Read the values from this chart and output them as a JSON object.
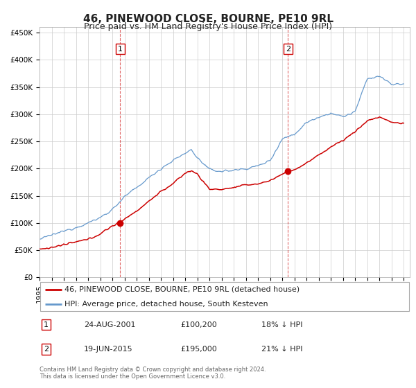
{
  "title": "46, PINEWOOD CLOSE, BOURNE, PE10 9RL",
  "subtitle": "Price paid vs. HM Land Registry's House Price Index (HPI)",
  "background_color": "#ffffff",
  "plot_bg_color": "#ffffff",
  "grid_color": "#cccccc",
  "red_line_color": "#cc0000",
  "blue_line_color": "#6699cc",
  "marker1_date": 2001.648,
  "marker1_value": 100200,
  "marker1_x_line": 2001.648,
  "marker2_date": 2015.464,
  "marker2_value": 195000,
  "marker2_x_line": 2015.464,
  "ylim_min": 0,
  "ylim_max": 460000,
  "xlim_min": 1995.0,
  "xlim_max": 2025.5,
  "legend_label_red": "46, PINEWOOD CLOSE, BOURNE, PE10 9RL (detached house)",
  "legend_label_blue": "HPI: Average price, detached house, South Kesteven",
  "table_row1": [
    "1",
    "24-AUG-2001",
    "£100,200",
    "18% ↓ HPI"
  ],
  "table_row2": [
    "2",
    "19-JUN-2015",
    "£195,000",
    "21% ↓ HPI"
  ],
  "footnote1": "Contains HM Land Registry data © Crown copyright and database right 2024.",
  "footnote2": "This data is licensed under the Open Government Licence v3.0.",
  "title_fontsize": 11,
  "subtitle_fontsize": 9,
  "tick_fontsize": 7.5,
  "ytick_labels": [
    "£0",
    "£50K",
    "£100K",
    "£150K",
    "£200K",
    "£250K",
    "£300K",
    "£350K",
    "£400K",
    "£450K"
  ],
  "ytick_values": [
    0,
    50000,
    100000,
    150000,
    200000,
    250000,
    300000,
    350000,
    400000,
    450000
  ],
  "xtick_values": [
    1995,
    1996,
    1997,
    1998,
    1999,
    2000,
    2001,
    2002,
    2003,
    2004,
    2005,
    2006,
    2007,
    2008,
    2009,
    2010,
    2011,
    2012,
    2013,
    2014,
    2015,
    2016,
    2017,
    2018,
    2019,
    2020,
    2021,
    2022,
    2023,
    2024,
    2025
  ]
}
